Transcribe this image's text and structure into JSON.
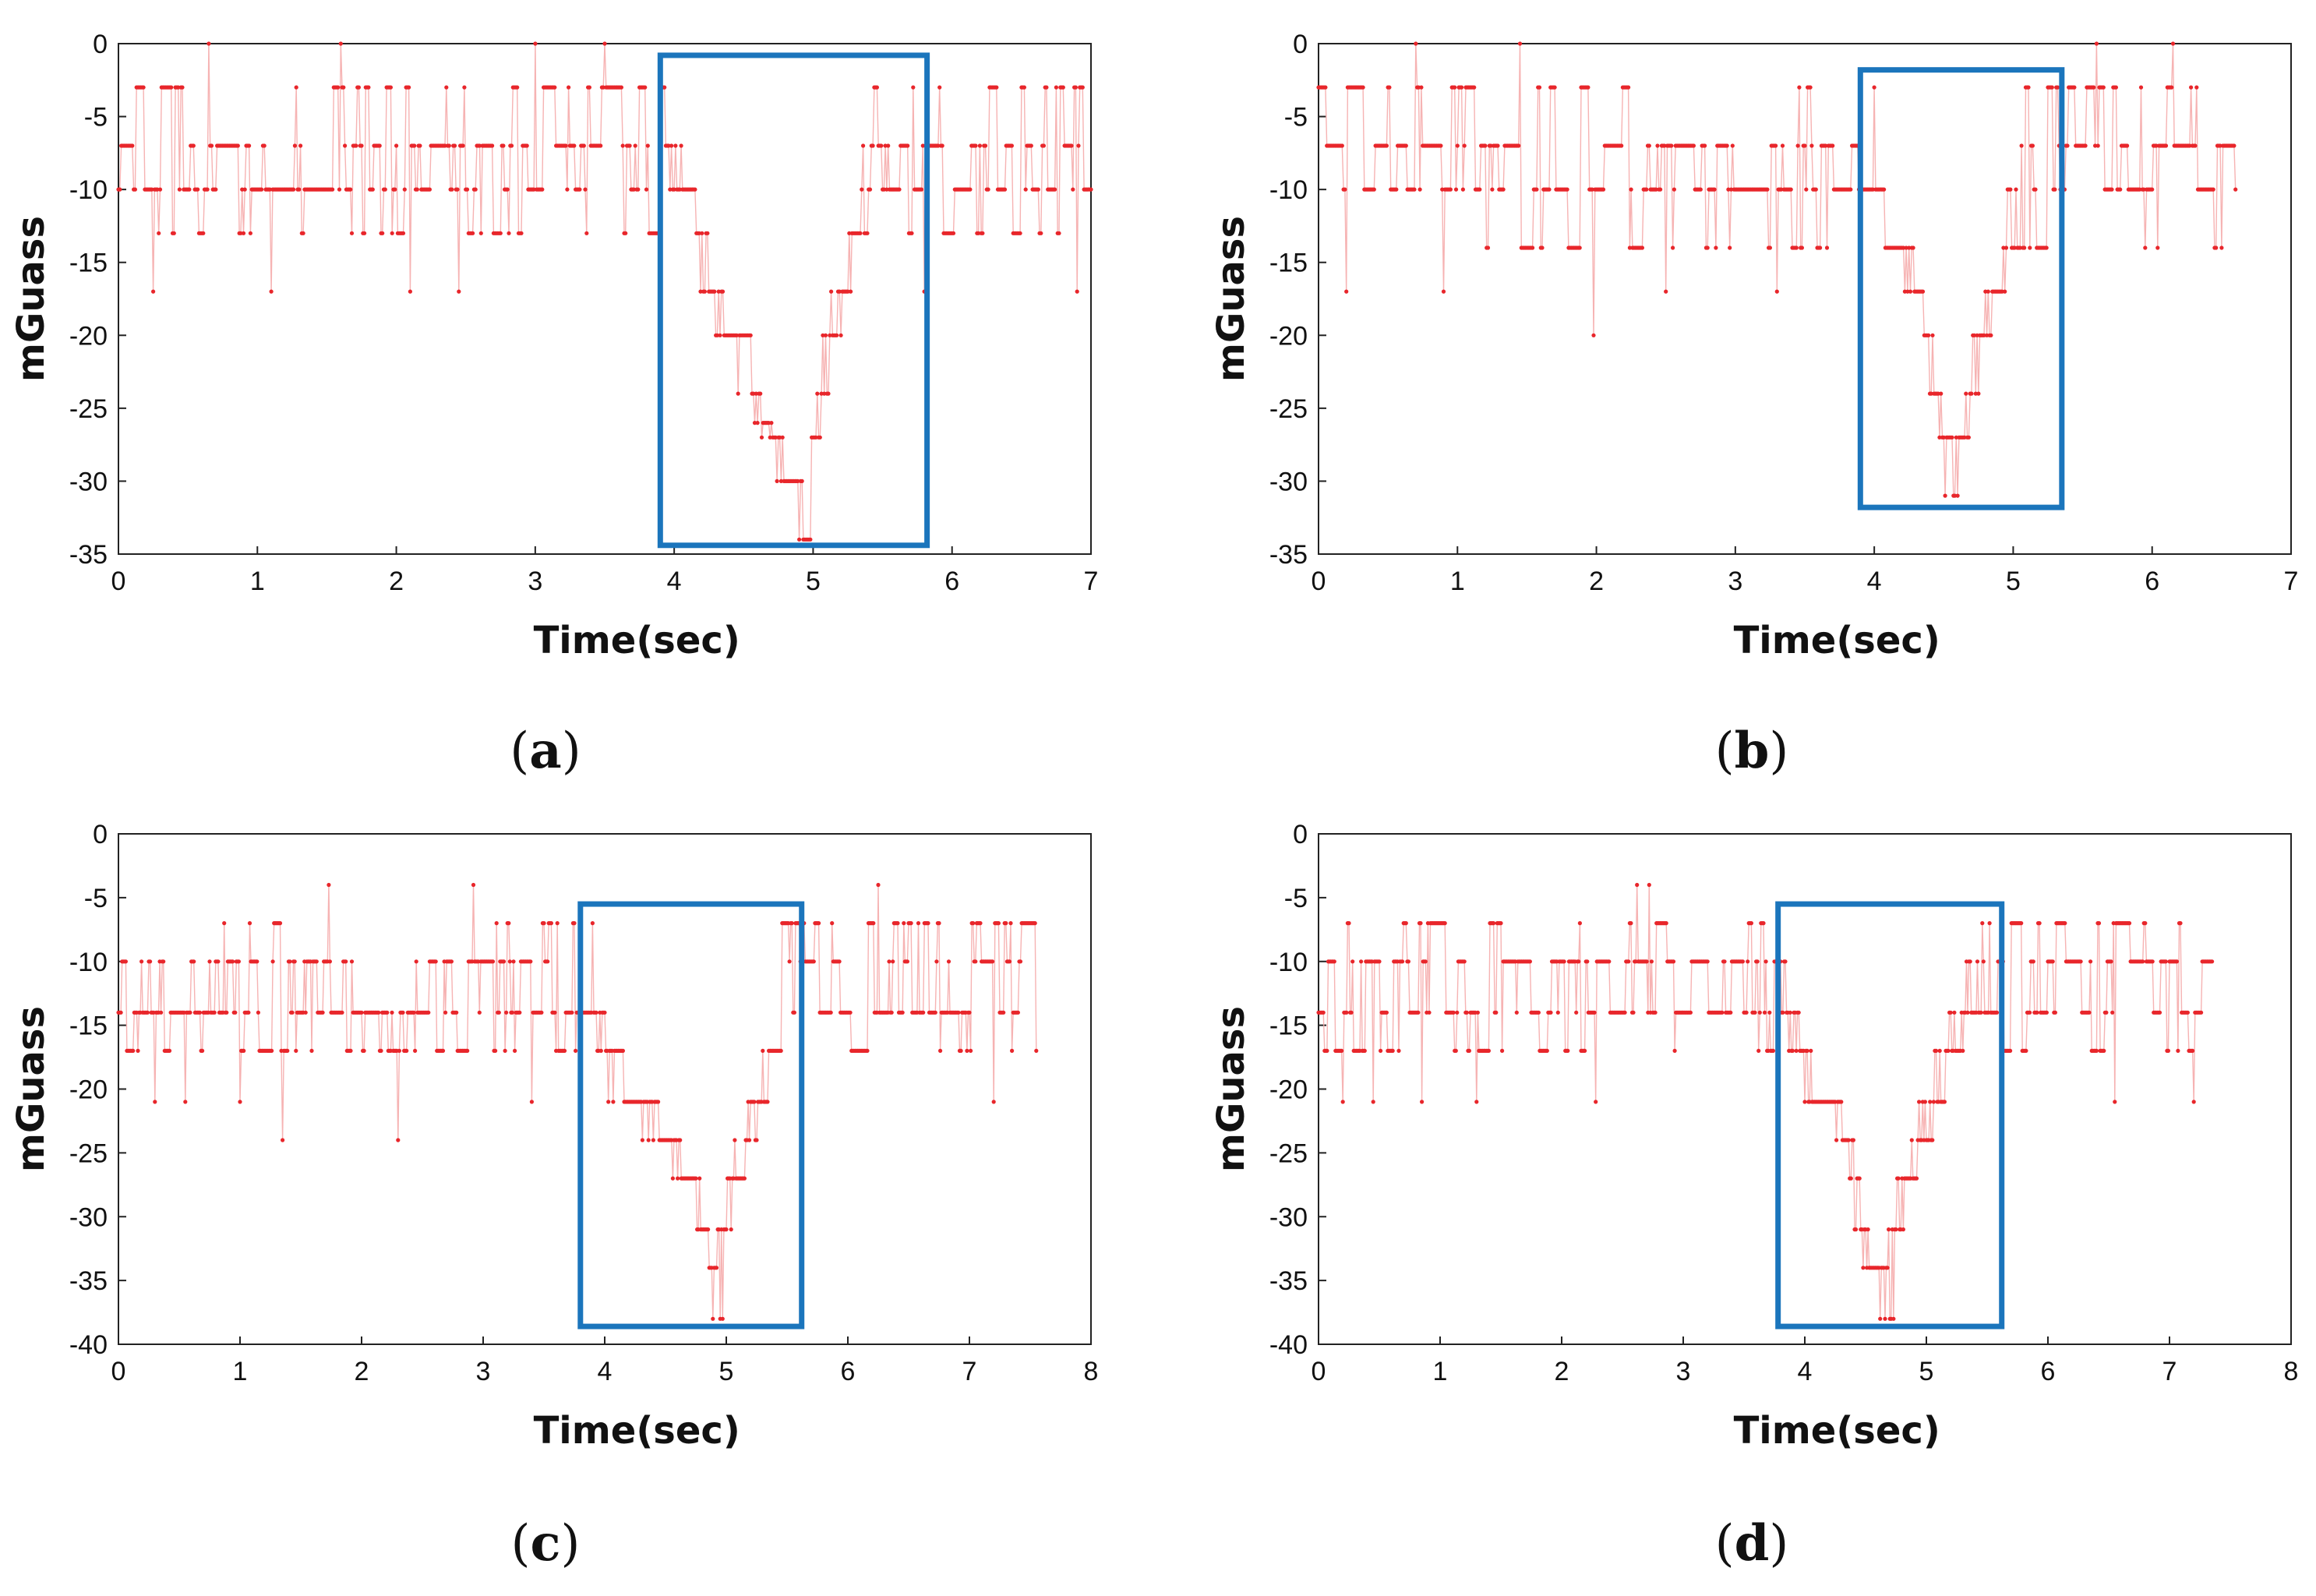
{
  "colors": {
    "series": "#e8262b",
    "highlight": "#1b75bc",
    "axes": "#222222"
  },
  "chart_data": [
    {
      "type": "scatter",
      "panel": "a",
      "caption_letter": "a",
      "xlabel": "Time(sec)",
      "ylabel": "mGuass",
      "xlim": [
        0,
        7
      ],
      "ylim": [
        -35,
        0
      ],
      "xticks": [
        0,
        1,
        2,
        3,
        4,
        5,
        6,
        7
      ],
      "yticks": [
        0,
        -5,
        -10,
        -15,
        -20,
        -25,
        -30,
        -35
      ],
      "duration": 7.0,
      "baseline_levels": [
        -3,
        -7,
        -10,
        -13
      ],
      "baseline_weights": [
        0.2,
        0.32,
        0.36,
        0.12
      ],
      "spikes": [
        [
          0.25,
          -17
        ],
        [
          0.65,
          0
        ],
        [
          1.1,
          -17
        ],
        [
          1.6,
          0
        ],
        [
          2.1,
          -17
        ],
        [
          2.45,
          -17
        ],
        [
          3.0,
          0
        ],
        [
          3.5,
          0
        ],
        [
          5.8,
          -17
        ],
        [
          6.9,
          -17
        ]
      ],
      "dip": {
        "start": 3.9,
        "end": 5.35,
        "bottom": -34,
        "points": [
          [
            3.95,
            -7
          ],
          [
            4.05,
            -10
          ],
          [
            4.15,
            -13
          ],
          [
            4.25,
            -17
          ],
          [
            4.35,
            -20
          ],
          [
            4.45,
            -20
          ],
          [
            4.55,
            -24
          ],
          [
            4.62,
            -26
          ],
          [
            4.7,
            -27
          ],
          [
            4.78,
            -30
          ],
          [
            4.86,
            -30
          ],
          [
            4.92,
            -34
          ],
          [
            4.98,
            -27
          ],
          [
            5.05,
            -24
          ],
          [
            5.12,
            -20
          ],
          [
            5.2,
            -17
          ],
          [
            5.28,
            -13
          ],
          [
            5.35,
            -10
          ]
        ]
      },
      "highlight_box": {
        "x0": 3.9,
        "x1": 5.82,
        "y0": -0.8,
        "y1": -34.4
      }
    },
    {
      "type": "scatter",
      "panel": "b",
      "caption_letter": "b",
      "xlabel": "Time(sec)",
      "ylabel": "mGuass",
      "xlim": [
        0,
        7
      ],
      "ylim": [
        -35,
        0
      ],
      "xticks": [
        0,
        1,
        2,
        3,
        4,
        5,
        6,
        7
      ],
      "yticks": [
        0,
        -5,
        -10,
        -15,
        -20,
        -25,
        -30,
        -35
      ],
      "duration": 6.6,
      "baseline_levels": [
        -3,
        -7,
        -10,
        -14
      ],
      "baseline_weights": [
        0.18,
        0.34,
        0.34,
        0.14
      ],
      "spikes": [
        [
          0.2,
          -17
        ],
        [
          0.7,
          0
        ],
        [
          0.9,
          -17
        ],
        [
          1.45,
          0
        ],
        [
          1.98,
          -20
        ],
        [
          2.5,
          -17
        ],
        [
          3.3,
          -17
        ],
        [
          5.6,
          0
        ],
        [
          6.15,
          0
        ],
        [
          6.5,
          -14
        ]
      ],
      "dip": {
        "start": 3.95,
        "end": 5.1,
        "bottom": -31,
        "points": [
          [
            4.0,
            -10
          ],
          [
            4.1,
            -14
          ],
          [
            4.2,
            -14
          ],
          [
            4.28,
            -17
          ],
          [
            4.35,
            -20
          ],
          [
            4.42,
            -24
          ],
          [
            4.48,
            -27
          ],
          [
            4.55,
            -31
          ],
          [
            4.6,
            -27
          ],
          [
            4.68,
            -24
          ],
          [
            4.75,
            -20
          ],
          [
            4.85,
            -17
          ],
          [
            4.95,
            -14
          ],
          [
            5.05,
            -10
          ]
        ]
      },
      "highlight_box": {
        "x0": 3.9,
        "x1": 5.35,
        "y0": -1.8,
        "y1": -31.8
      }
    },
    {
      "type": "scatter",
      "panel": "c",
      "caption_letter": "c",
      "xlabel": "Time(sec)",
      "ylabel": "mGuass",
      "xlim": [
        0,
        8
      ],
      "ylim": [
        -40,
        0
      ],
      "xticks": [
        0,
        1,
        2,
        3,
        4,
        5,
        6,
        7,
        8
      ],
      "yticks": [
        0,
        -5,
        -10,
        -15,
        -20,
        -25,
        -30,
        -35,
        -40
      ],
      "duration": 7.55,
      "baseline_levels": [
        -7,
        -10,
        -14,
        -17
      ],
      "baseline_weights": [
        0.14,
        0.3,
        0.34,
        0.22
      ],
      "spikes": [
        [
          0.3,
          -21
        ],
        [
          0.55,
          -21
        ],
        [
          1.0,
          -21
        ],
        [
          1.35,
          -24
        ],
        [
          1.73,
          -4
        ],
        [
          2.3,
          -24
        ],
        [
          2.92,
          -4
        ],
        [
          3.4,
          -21
        ],
        [
          6.25,
          -4
        ],
        [
          7.2,
          -21
        ]
      ],
      "dip": {
        "start": 3.85,
        "end": 5.55,
        "bottom": -38,
        "points": [
          [
            3.9,
            -14
          ],
          [
            4.0,
            -17
          ],
          [
            4.15,
            -21
          ],
          [
            4.3,
            -21
          ],
          [
            4.45,
            -24
          ],
          [
            4.55,
            -24
          ],
          [
            4.62,
            -27
          ],
          [
            4.7,
            -27
          ],
          [
            4.78,
            -31
          ],
          [
            4.85,
            -34
          ],
          [
            4.92,
            -38
          ],
          [
            4.98,
            -31
          ],
          [
            5.05,
            -27
          ],
          [
            5.15,
            -24
          ],
          [
            5.25,
            -21
          ],
          [
            5.35,
            -17
          ],
          [
            5.45,
            -14
          ]
        ]
      },
      "highlight_box": {
        "x0": 3.8,
        "x1": 5.62,
        "y0": -5.5,
        "y1": -38.6
      }
    },
    {
      "type": "scatter",
      "panel": "d",
      "caption_letter": "d",
      "xlabel": "Time(sec)",
      "ylabel": "mGuass",
      "xlim": [
        0,
        8
      ],
      "ylim": [
        -40,
        0
      ],
      "xticks": [
        0,
        1,
        2,
        3,
        4,
        5,
        6,
        7,
        8
      ],
      "yticks": [
        0,
        -5,
        -10,
        -15,
        -20,
        -25,
        -30,
        -35,
        -40
      ],
      "duration": 7.35,
      "baseline_levels": [
        -7,
        -10,
        -14,
        -17
      ],
      "baseline_weights": [
        0.12,
        0.34,
        0.38,
        0.16
      ],
      "spikes": [
        [
          0.2,
          -21
        ],
        [
          0.45,
          -21
        ],
        [
          0.85,
          -21
        ],
        [
          1.3,
          -21
        ],
        [
          2.28,
          -21
        ],
        [
          2.62,
          -4
        ],
        [
          2.72,
          -4
        ],
        [
          4.1,
          -21
        ],
        [
          6.55,
          -21
        ],
        [
          7.2,
          -21
        ]
      ],
      "dip": {
        "start": 3.8,
        "end": 5.5,
        "bottom": -38,
        "points": [
          [
            3.85,
            -14
          ],
          [
            3.95,
            -17
          ],
          [
            4.05,
            -21
          ],
          [
            4.2,
            -21
          ],
          [
            4.3,
            -24
          ],
          [
            4.4,
            -27
          ],
          [
            4.45,
            -31
          ],
          [
            4.52,
            -34
          ],
          [
            4.6,
            -34
          ],
          [
            4.68,
            -38
          ],
          [
            4.74,
            -31
          ],
          [
            4.82,
            -27
          ],
          [
            4.92,
            -24
          ],
          [
            5.05,
            -21
          ],
          [
            5.15,
            -17
          ],
          [
            5.3,
            -14
          ],
          [
            5.45,
            -10
          ]
        ]
      },
      "highlight_box": {
        "x0": 3.78,
        "x1": 5.62,
        "y0": -5.5,
        "y1": -38.6
      }
    }
  ]
}
